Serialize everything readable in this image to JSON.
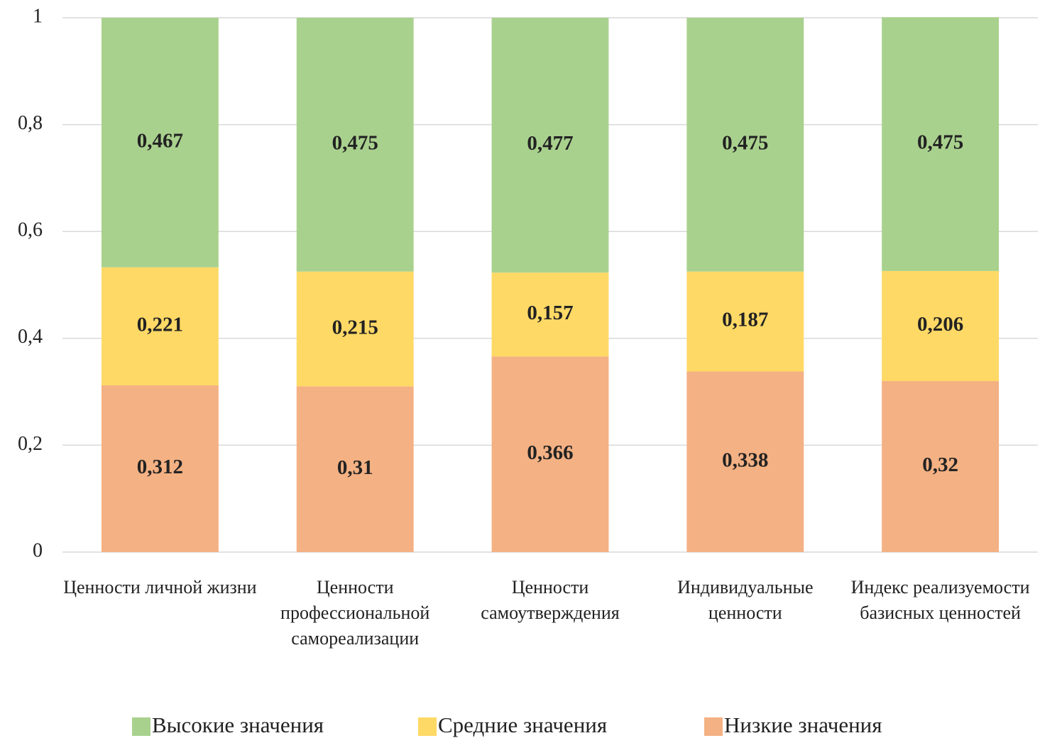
{
  "chart_data": {
    "type": "stacked_bar",
    "categories": [
      "Ценности личной жизни",
      "Ценности профессиональной самореализации",
      "Ценности самоутверждения",
      "Индивидуальные ценности",
      "Индекс реализуемости базисных ценностей"
    ],
    "series": [
      {
        "name": "Высокие значения",
        "color": "#a9d18e",
        "values": [
          0.467,
          0.475,
          0.477,
          0.475,
          0.475
        ],
        "value_labels": [
          "0,467",
          "0,475",
          "0,477",
          "0,475",
          "0,475"
        ]
      },
      {
        "name": "Средние значения",
        "color": "#ffd966",
        "values": [
          0.221,
          0.215,
          0.157,
          0.187,
          0.206
        ],
        "value_labels": [
          "0,221",
          "0,215",
          "0,157",
          "0,187",
          "0,206"
        ]
      },
      {
        "name": "Низкие значения",
        "color": "#f4b183",
        "values": [
          0.312,
          0.31,
          0.366,
          0.338,
          0.32
        ],
        "value_labels": [
          "0,312",
          "0,31",
          "0,366",
          "0,338",
          "0,32"
        ]
      }
    ],
    "ylim": [
      0,
      1
    ],
    "yticks": [
      0,
      {
        "value": 0.2,
        "label": "0,2"
      },
      {
        "value": 0.4,
        "label": "0,4"
      },
      {
        "value": 0.6,
        "label": "0,6"
      },
      {
        "value": 0.8,
        "label": "0,8"
      },
      1
    ],
    "grid": true,
    "legend": "bottom"
  }
}
